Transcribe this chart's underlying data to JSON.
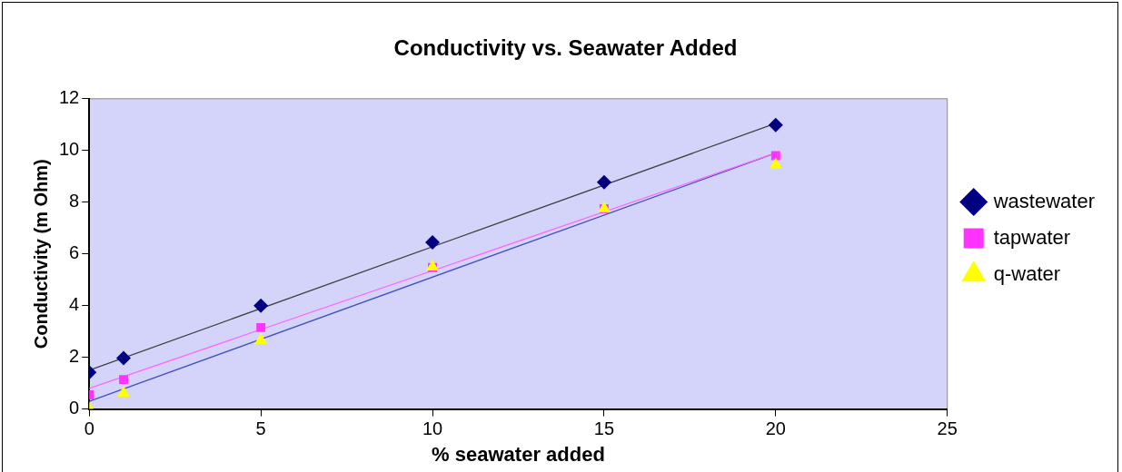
{
  "chart_data": {
    "type": "scatter",
    "title": "Conductivity vs. Seawater Added",
    "xlabel": "% seawater added",
    "ylabel": "Conductivity (m Ohm)",
    "xlim": [
      0,
      25
    ],
    "xticks": [
      0,
      5,
      10,
      15,
      20,
      25
    ],
    "ylim": [
      0,
      12
    ],
    "yticks": [
      0,
      2,
      4,
      6,
      8,
      10,
      12
    ],
    "grid": false,
    "legend": "right",
    "series": [
      {
        "name": "wastewater",
        "color": "#000080",
        "marker": "diamond",
        "x": [
          0,
          1,
          5,
          10,
          15,
          20
        ],
        "values": [
          1.42,
          1.97,
          4.0,
          6.45,
          8.77,
          10.98
        ]
      },
      {
        "name": "tapwater",
        "color": "#ff33ff",
        "marker": "square",
        "x": [
          0,
          1,
          5,
          10,
          15,
          20
        ],
        "values": [
          0.55,
          1.14,
          3.15,
          5.47,
          7.75,
          9.8
        ]
      },
      {
        "name": "q-water",
        "color": "#ffff00",
        "marker": "triangle",
        "x": [
          0,
          1,
          5,
          10,
          15,
          20
        ],
        "values": [
          0,
          0.62,
          2.65,
          5.5,
          7.75,
          9.45
        ]
      },
      {
        "type": "line",
        "color": "#404040",
        "marker": "none",
        "x": [
          0,
          20
        ],
        "values": [
          1.5,
          11.05
        ]
      },
      {
        "type": "line",
        "color": "#ff66ff",
        "marker": "none",
        "x": [
          0,
          20
        ],
        "values": [
          0.8,
          9.9
        ]
      },
      {
        "type": "line",
        "color": "#4050c0",
        "marker": "none",
        "x": [
          0,
          20
        ],
        "values": [
          0.3,
          9.9
        ]
      }
    ]
  }
}
